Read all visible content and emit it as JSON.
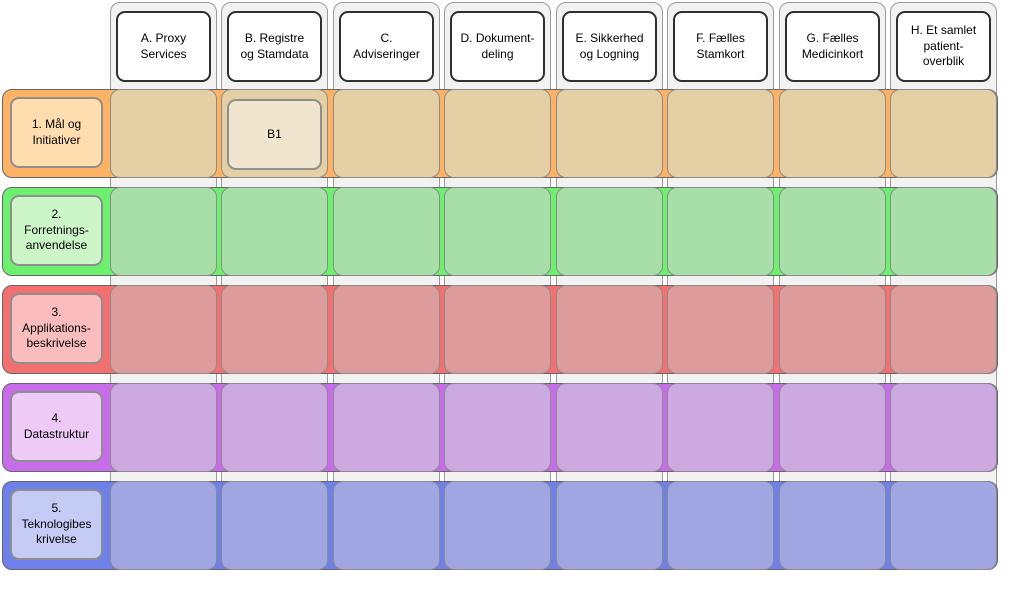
{
  "matrix": {
    "columns": [
      {
        "id": "A",
        "label": "A. Proxy\nServices"
      },
      {
        "id": "B",
        "label": "B. Registre\nog Stamdata"
      },
      {
        "id": "C",
        "label": "C.\nAdviseringer"
      },
      {
        "id": "D",
        "label": "D. Dokument-\ndeling"
      },
      {
        "id": "E",
        "label": "E. Sikkerhed\nog Logning"
      },
      {
        "id": "F",
        "label": "F. Fælles\nStamkort"
      },
      {
        "id": "G",
        "label": "G. Fælles\nMedicinkort"
      },
      {
        "id": "H",
        "label": "H. Et samlet\npatient-\noverblik"
      }
    ],
    "rows": [
      {
        "id": "1",
        "label": "1. Mål og\nInitiativer",
        "colors": {
          "band": "#FFB263",
          "label_fill": "#FFDDAE",
          "cell_fill": "#E5CFA4"
        }
      },
      {
        "id": "2",
        "label": "2.\nForretnings-\nanvendelse",
        "colors": {
          "band": "#6DF06D",
          "label_fill": "#CCF5C8",
          "cell_fill": "#A8DFA8"
        }
      },
      {
        "id": "3",
        "label": "3.\nApplikations-\nbeskrivelse",
        "colors": {
          "band": "#F37070",
          "label_fill": "#FABCBC",
          "cell_fill": "#DD9B9B"
        }
      },
      {
        "id": "4",
        "label": "4.\nDatastruktur",
        "colors": {
          "band": "#C76DE9",
          "label_fill": "#EECBF7",
          "cell_fill": "#CDA9E2"
        }
      },
      {
        "id": "5",
        "label": "5.\nTeknologibes\nkrivelse",
        "colors": {
          "band": "#6E80E9",
          "label_fill": "#C4CBF5",
          "cell_fill": "#A0A6E1"
        }
      }
    ],
    "cells": [
      {
        "label": "B1",
        "row_index": 0,
        "col_index": 1,
        "fill": "#F1E5D0"
      }
    ],
    "palette": {
      "canvas_bg": "#FFFFFF",
      "column_fill": "#F2F2F2",
      "column_border": "#9A9A9A",
      "band_border": "#666666",
      "cell_border": "#8B8B8B",
      "header_fill": "#FFFFFF",
      "header_border": "#2F2F2F",
      "label_border": "#8F8F8F",
      "text": "#000000"
    }
  }
}
